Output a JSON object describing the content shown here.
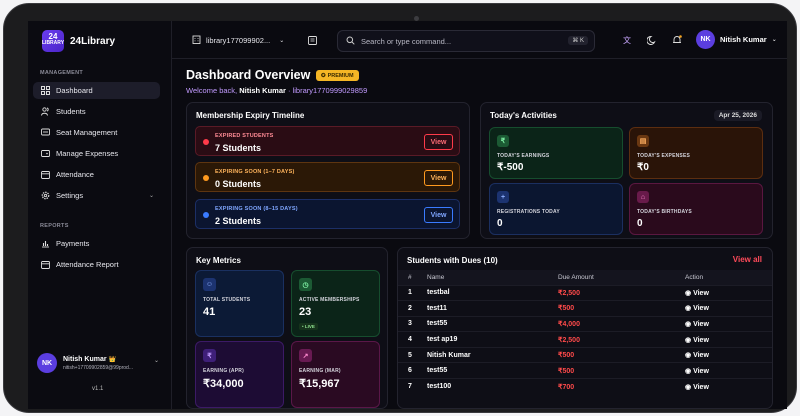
{
  "brand": {
    "logo_top": "24",
    "logo_bottom": "LIBRARY",
    "name": "24Library"
  },
  "sidebar": {
    "management_label": "MANAGEMENT",
    "items": [
      {
        "label": "Dashboard",
        "icon": "grid-icon"
      },
      {
        "label": "Students",
        "icon": "users-icon"
      },
      {
        "label": "Seat Management",
        "icon": "seat-icon"
      },
      {
        "label": "Manage Expenses",
        "icon": "wallet-icon"
      },
      {
        "label": "Attendance",
        "icon": "calendar-icon"
      },
      {
        "label": "Settings",
        "icon": "gear-icon"
      }
    ],
    "reports_label": "REPORTS",
    "report_items": [
      {
        "label": "Payments",
        "icon": "chart-icon"
      },
      {
        "label": "Attendance Report",
        "icon": "calendar-icon"
      }
    ],
    "user": {
      "initials": "NK",
      "name": "Nitish Kumar",
      "crown": "👑",
      "id": "nitish+17709902859@99prod..."
    },
    "version": "v1.1"
  },
  "topbar": {
    "library": "library177099902...",
    "search_placeholder": "Search or type command...",
    "shortcut": "⌘ K",
    "user_initials": "NK",
    "user_name": "Nitish Kumar"
  },
  "header": {
    "title": "Dashboard Overview",
    "badge": "PREMIUM",
    "welcome_prefix": "Welcome back,",
    "welcome_name": "Nitish Kumar",
    "welcome_suffix": "· library1770999029859"
  },
  "expiry": {
    "title": "Membership Expiry Timeline",
    "rows": [
      {
        "label": "EXPIRED STUDENTS",
        "value": "7 Students",
        "button": "View"
      },
      {
        "label": "EXPIRING SOON (1–7 DAYS)",
        "value": "0 Students",
        "button": "View"
      },
      {
        "label": "EXPIRING SOON (8–15 DAYS)",
        "value": "2 Students",
        "button": "View"
      }
    ]
  },
  "activities": {
    "title": "Today's Activities",
    "date": "Apr 25, 2026",
    "cards": [
      {
        "label": "TODAY'S EARNINGS",
        "value": "₹-500",
        "icon": "₹"
      },
      {
        "label": "TODAY'S EXPENSES",
        "value": "₹0",
        "icon": "▤"
      },
      {
        "label": "REGISTRATIONS TODAY",
        "value": "0",
        "icon": "+"
      },
      {
        "label": "TODAY'S BIRTHDAYS",
        "value": "0",
        "icon": "⌂"
      }
    ]
  },
  "metrics": {
    "title": "Key Metrics",
    "cards": [
      {
        "label": "TOTAL STUDENTS",
        "value": "41",
        "icon": "☺"
      },
      {
        "label": "ACTIVE MEMBERSHIPS",
        "value": "23",
        "icon": "◷",
        "live": "• LIVE"
      },
      {
        "label": "EARNING (APR)",
        "value": "₹34,000",
        "icon": "₹"
      },
      {
        "label": "EARNING (MAR)",
        "value": "₹15,967",
        "icon": "↗"
      }
    ]
  },
  "dues": {
    "title": "Students with Dues (10)",
    "view_all": "View all",
    "headers": [
      "#",
      "Name",
      "Due Amount",
      "Action"
    ],
    "rows": [
      {
        "n": "1",
        "name": "testbal",
        "due": "₹2,500",
        "action": "View"
      },
      {
        "n": "2",
        "name": "test11",
        "due": "₹500",
        "action": "View"
      },
      {
        "n": "3",
        "name": "test55",
        "due": "₹4,000",
        "action": "View"
      },
      {
        "n": "4",
        "name": "test ap19",
        "due": "₹2,500",
        "action": "View"
      },
      {
        "n": "5",
        "name": "Nitish Kumar",
        "due": "₹500",
        "action": "View"
      },
      {
        "n": "6",
        "name": "test55",
        "due": "₹500",
        "action": "View"
      },
      {
        "n": "7",
        "name": "test100",
        "due": "₹700",
        "action": "View"
      }
    ]
  }
}
